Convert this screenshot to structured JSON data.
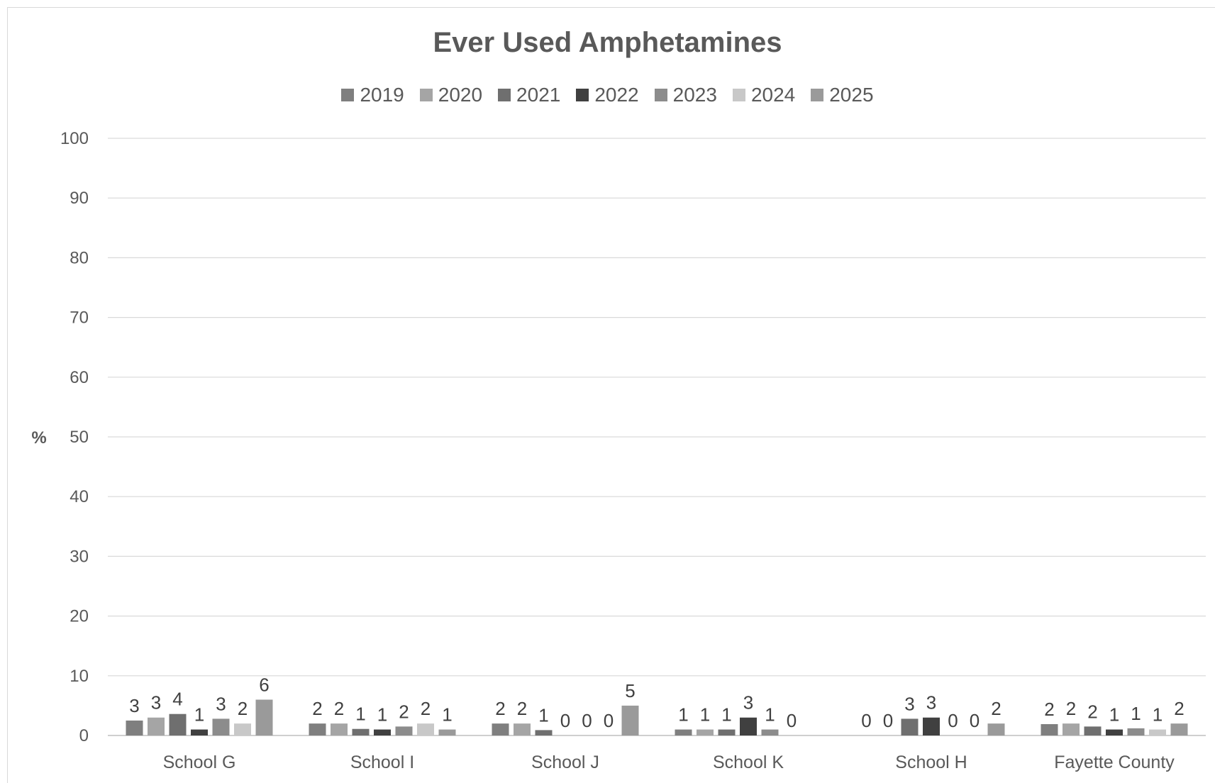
{
  "chart_data": {
    "type": "bar",
    "title": "Ever Used Amphetamines",
    "ylabel": "%",
    "xlabel": "",
    "ylim": [
      0,
      100
    ],
    "yticks": [
      0,
      10,
      20,
      30,
      40,
      50,
      60,
      70,
      80,
      90,
      100
    ],
    "grid": true,
    "legend_position": "top",
    "categories": [
      "School G",
      "School I",
      "School J",
      "School K",
      "School H",
      "Fayette County"
    ],
    "series": [
      {
        "name": "2019",
        "color": "#7f7f7f",
        "values": [
          2.5,
          2.0,
          2.0,
          1.0,
          null,
          1.9
        ],
        "data_labels": [
          "3",
          "2",
          "2",
          "1",
          "0",
          "2"
        ]
      },
      {
        "name": "2020",
        "color": "#a5a5a5",
        "values": [
          3.0,
          2.0,
          2.0,
          1.0,
          null,
          2.0
        ],
        "data_labels": [
          "3",
          "2",
          "2",
          "1",
          "0",
          "2"
        ]
      },
      {
        "name": "2021",
        "color": "#6f6f6f",
        "values": [
          3.6,
          1.1,
          0.9,
          1.0,
          2.8,
          1.5
        ],
        "data_labels": [
          "4",
          "1",
          "1",
          "1",
          "3",
          "2"
        ]
      },
      {
        "name": "2022",
        "color": "#404040",
        "values": [
          1.0,
          1.0,
          0.0,
          3.0,
          3.0,
          1.0
        ],
        "data_labels": [
          "1",
          "1",
          "0",
          "3",
          "3",
          "1"
        ]
      },
      {
        "name": "2023",
        "color": "#8c8c8c",
        "values": [
          2.8,
          1.5,
          0.0,
          1.0,
          0.0,
          1.2
        ],
        "data_labels": [
          "3",
          "2",
          "0",
          "1",
          "0",
          "1"
        ]
      },
      {
        "name": "2024",
        "color": "#c8c8c8",
        "values": [
          2.0,
          2.0,
          0.0,
          0.0,
          0.0,
          1.0
        ],
        "data_labels": [
          "2",
          "2",
          "0",
          "0",
          "0",
          "1"
        ]
      },
      {
        "name": "2025",
        "color": "#9a9a9a",
        "values": [
          6.0,
          1.0,
          5.0,
          null,
          2.0,
          2.0
        ],
        "data_labels": [
          "6",
          "1",
          "5",
          "",
          "2",
          "2"
        ]
      }
    ]
  }
}
